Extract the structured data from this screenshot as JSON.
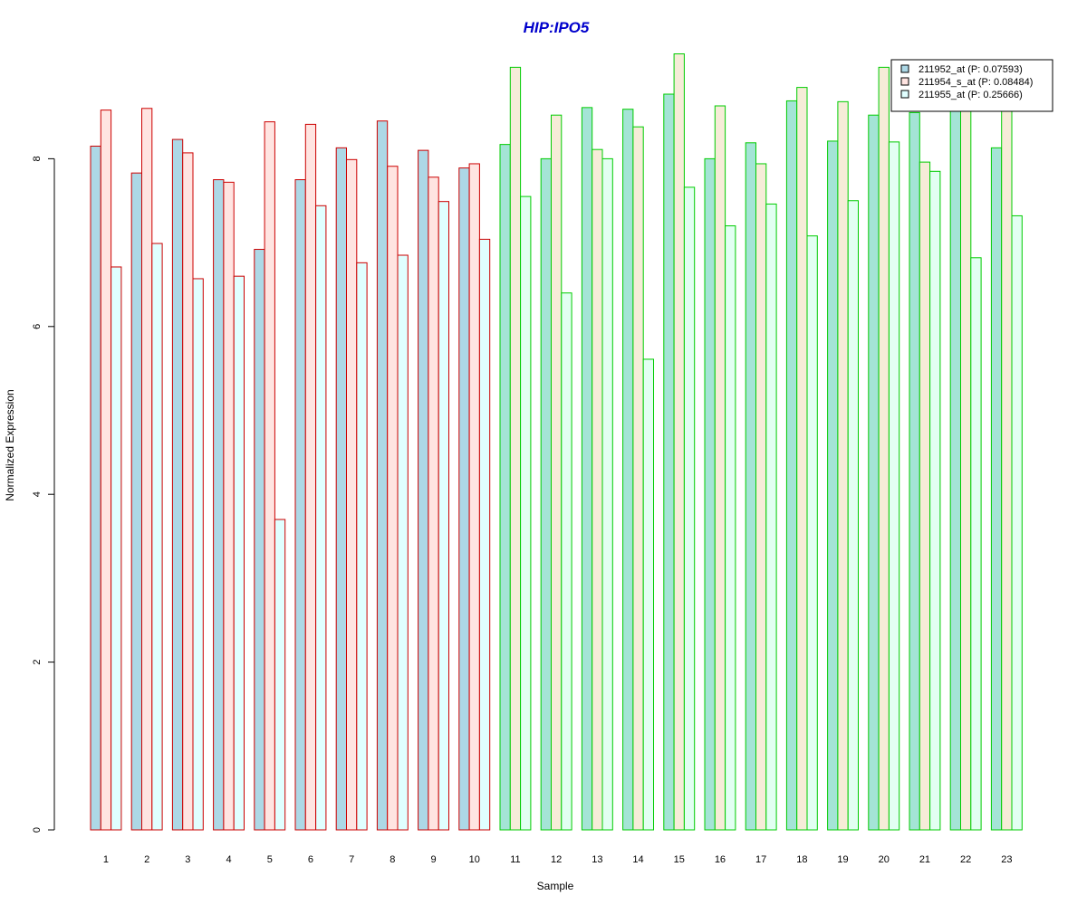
{
  "chart_data": {
    "type": "bar",
    "title": "HIP:IPO5",
    "xlabel": "Sample",
    "ylabel": "Normalized Expression",
    "categories": [
      "1",
      "2",
      "3",
      "4",
      "5",
      "6",
      "7",
      "8",
      "9",
      "10",
      "11",
      "12",
      "13",
      "14",
      "15",
      "16",
      "17",
      "18",
      "19",
      "20",
      "21",
      "22",
      "23"
    ],
    "ylim": [
      0,
      9.3
    ],
    "yticks": [
      0,
      2,
      4,
      6,
      8
    ],
    "grid": false,
    "legend_position": "top-right",
    "series": [
      {
        "name": "211952_at (P: 0.07593)",
        "fill": "#add8e6",
        "values": [
          8.15,
          7.83,
          8.23,
          7.75,
          6.92,
          7.75,
          8.13,
          8.45,
          8.1,
          7.89,
          8.17,
          8.0,
          8.61,
          8.59,
          8.77,
          8.0,
          8.19,
          8.69,
          8.21,
          8.52,
          8.55,
          8.59,
          8.13
        ]
      },
      {
        "name": "211954_s_at (P: 0.08484)",
        "fill": "#ffe4e1",
        "values": [
          8.58,
          8.6,
          8.07,
          7.72,
          8.44,
          8.41,
          7.99,
          7.91,
          7.78,
          7.94,
          9.09,
          8.52,
          8.11,
          8.38,
          9.25,
          8.63,
          7.94,
          8.85,
          8.68,
          9.09,
          7.96,
          8.62,
          8.6
        ]
      },
      {
        "name": "211955_at (P: 0.25666)",
        "fill": "#e0ffff",
        "values": [
          6.71,
          6.99,
          6.57,
          6.6,
          3.7,
          7.44,
          6.76,
          6.85,
          7.49,
          7.04,
          7.55,
          6.4,
          8.0,
          5.61,
          7.66,
          7.2,
          7.46,
          7.08,
          7.5,
          8.2,
          7.85,
          6.82,
          7.32
        ]
      }
    ],
    "sample_border_colors": [
      "#cc0000",
      "#cc0000",
      "#cc0000",
      "#cc0000",
      "#cc0000",
      "#cc0000",
      "#cc0000",
      "#cc0000",
      "#cc0000",
      "#cc0000",
      "#00cc00",
      "#00cc00",
      "#00cc00",
      "#00cc00",
      "#00cc00",
      "#00cc00",
      "#00cc00",
      "#00cc00",
      "#00cc00",
      "#00cc00",
      "#00cc00",
      "#00cc00",
      "#00cc00"
    ],
    "green_group_fill_overrides": [
      "#a4e4d6",
      "#f6ecd8",
      "#e2fff2"
    ],
    "title_color": "#0000cc"
  }
}
